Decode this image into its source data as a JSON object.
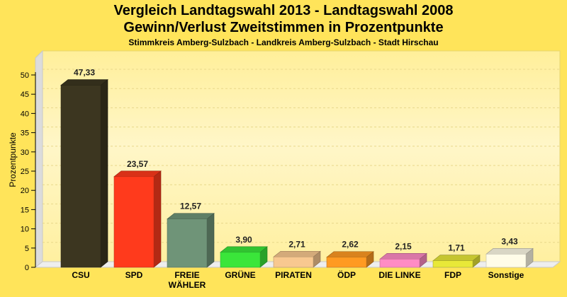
{
  "chart_data": {
    "type": "bar",
    "title": "Vergleich Landtagswahl 2013 - Landtagswahl 2008",
    "subtitle": "Gewinn/Verlust Zweitstimmen in Prozentpunkte",
    "subtitle2": "Stimmkreis Amberg-Sulzbach - Landkreis Amberg-Sulzbach - Stadt Hirschau",
    "ylabel": "Prozentpunkte",
    "ylim": [
      0,
      50
    ],
    "yticks": [
      0,
      5,
      10,
      15,
      20,
      25,
      30,
      35,
      40,
      45,
      50
    ],
    "grid": true,
    "categories": [
      "CSU",
      "SPD",
      "FREIE WÄHLER",
      "GRÜNE",
      "PIRATEN",
      "ÖDP",
      "DIE LINKE",
      "FDP",
      "Sonstige"
    ],
    "category_lines": [
      [
        "CSU"
      ],
      [
        "SPD"
      ],
      [
        "FREIE",
        "WÄHLER"
      ],
      [
        "GRÜNE"
      ],
      [
        "PIRATEN"
      ],
      [
        "ÖDP"
      ],
      [
        "DIE LINKE"
      ],
      [
        "FDP"
      ],
      [
        "Sonstige"
      ]
    ],
    "values": [
      47.33,
      23.57,
      12.57,
      3.9,
      2.71,
      2.62,
      2.15,
      1.71,
      3.43
    ],
    "value_labels": [
      "47,33",
      "23,57",
      "12,57",
      "3,90",
      "2,71",
      "2,62",
      "2,15",
      "1,71",
      "3,43"
    ],
    "colors": [
      "#3c3620",
      "#ff3a1c",
      "#6f9478",
      "#3ae63a",
      "#f8c890",
      "#ff9a22",
      "#ff8cc4",
      "#e8e838",
      "#fffce8"
    ]
  }
}
